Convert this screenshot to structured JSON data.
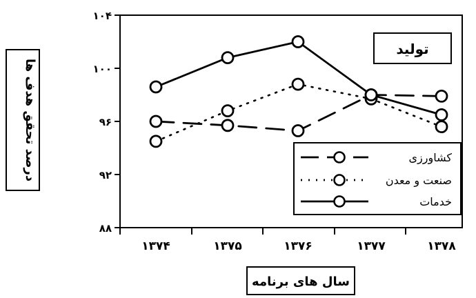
{
  "chart_data": {
    "type": "line",
    "title": "تولید",
    "xlabel": "سال های برنامه",
    "ylabel": "درصد تحقق هدف ها",
    "categories": [
      "۱۳۷۴",
      "۱۳۷۵",
      "۱۳۷۶",
      "۱۳۷۷",
      "۱۳۷۸"
    ],
    "y_ticks": [
      "۸۸",
      "۹۲",
      "۹۶",
      "۱۰۰",
      "۱۰۴"
    ],
    "ylim": [
      88,
      104
    ],
    "grid": false,
    "legend_position": "bottom-right",
    "series": [
      {
        "name": "کشاورزی",
        "style": "dashed",
        "values": [
          96.0,
          95.7,
          95.3,
          98.0,
          97.9
        ]
      },
      {
        "name": "صنعت و معدن",
        "style": "dotted",
        "values": [
          94.5,
          96.8,
          98.8,
          97.7,
          95.6
        ]
      },
      {
        "name": "خدمات",
        "style": "solid",
        "values": [
          98.6,
          100.8,
          102.0,
          98.0,
          96.5
        ]
      }
    ]
  }
}
